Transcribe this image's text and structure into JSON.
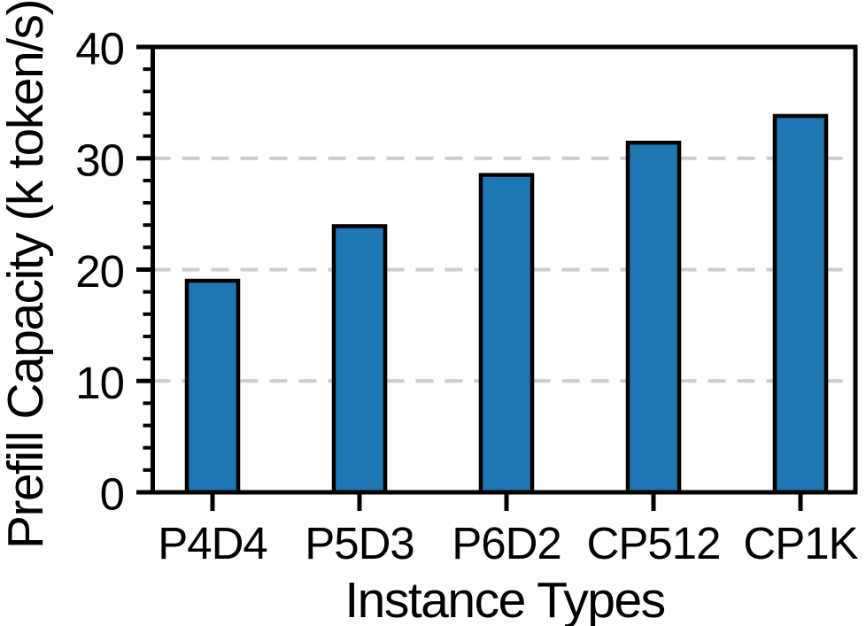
{
  "chart_data": {
    "type": "bar",
    "title": "",
    "categories": [
      "P4D4",
      "P5D3",
      "P6D2",
      "CP512",
      "CP1K"
    ],
    "values": [
      19.0,
      23.9,
      28.5,
      31.4,
      33.8
    ],
    "xlabel": "Instance Types",
    "ylabel": "Prefill Capacity (k token/s)",
    "ylim": [
      0,
      40
    ],
    "yticks": [
      0,
      10,
      20,
      30,
      40
    ],
    "y_minor_tick_step": 2,
    "gridline_values": [
      10,
      20,
      30
    ],
    "grid_style": "dashed",
    "grid_on": true,
    "legend_position": "none",
    "colors": {
      "bar_fill": "#1f77b4",
      "bar_edge": "#000000",
      "grid": "#cccccc",
      "axis": "#000000",
      "text": "#000000",
      "background": "#ffffff"
    }
  }
}
